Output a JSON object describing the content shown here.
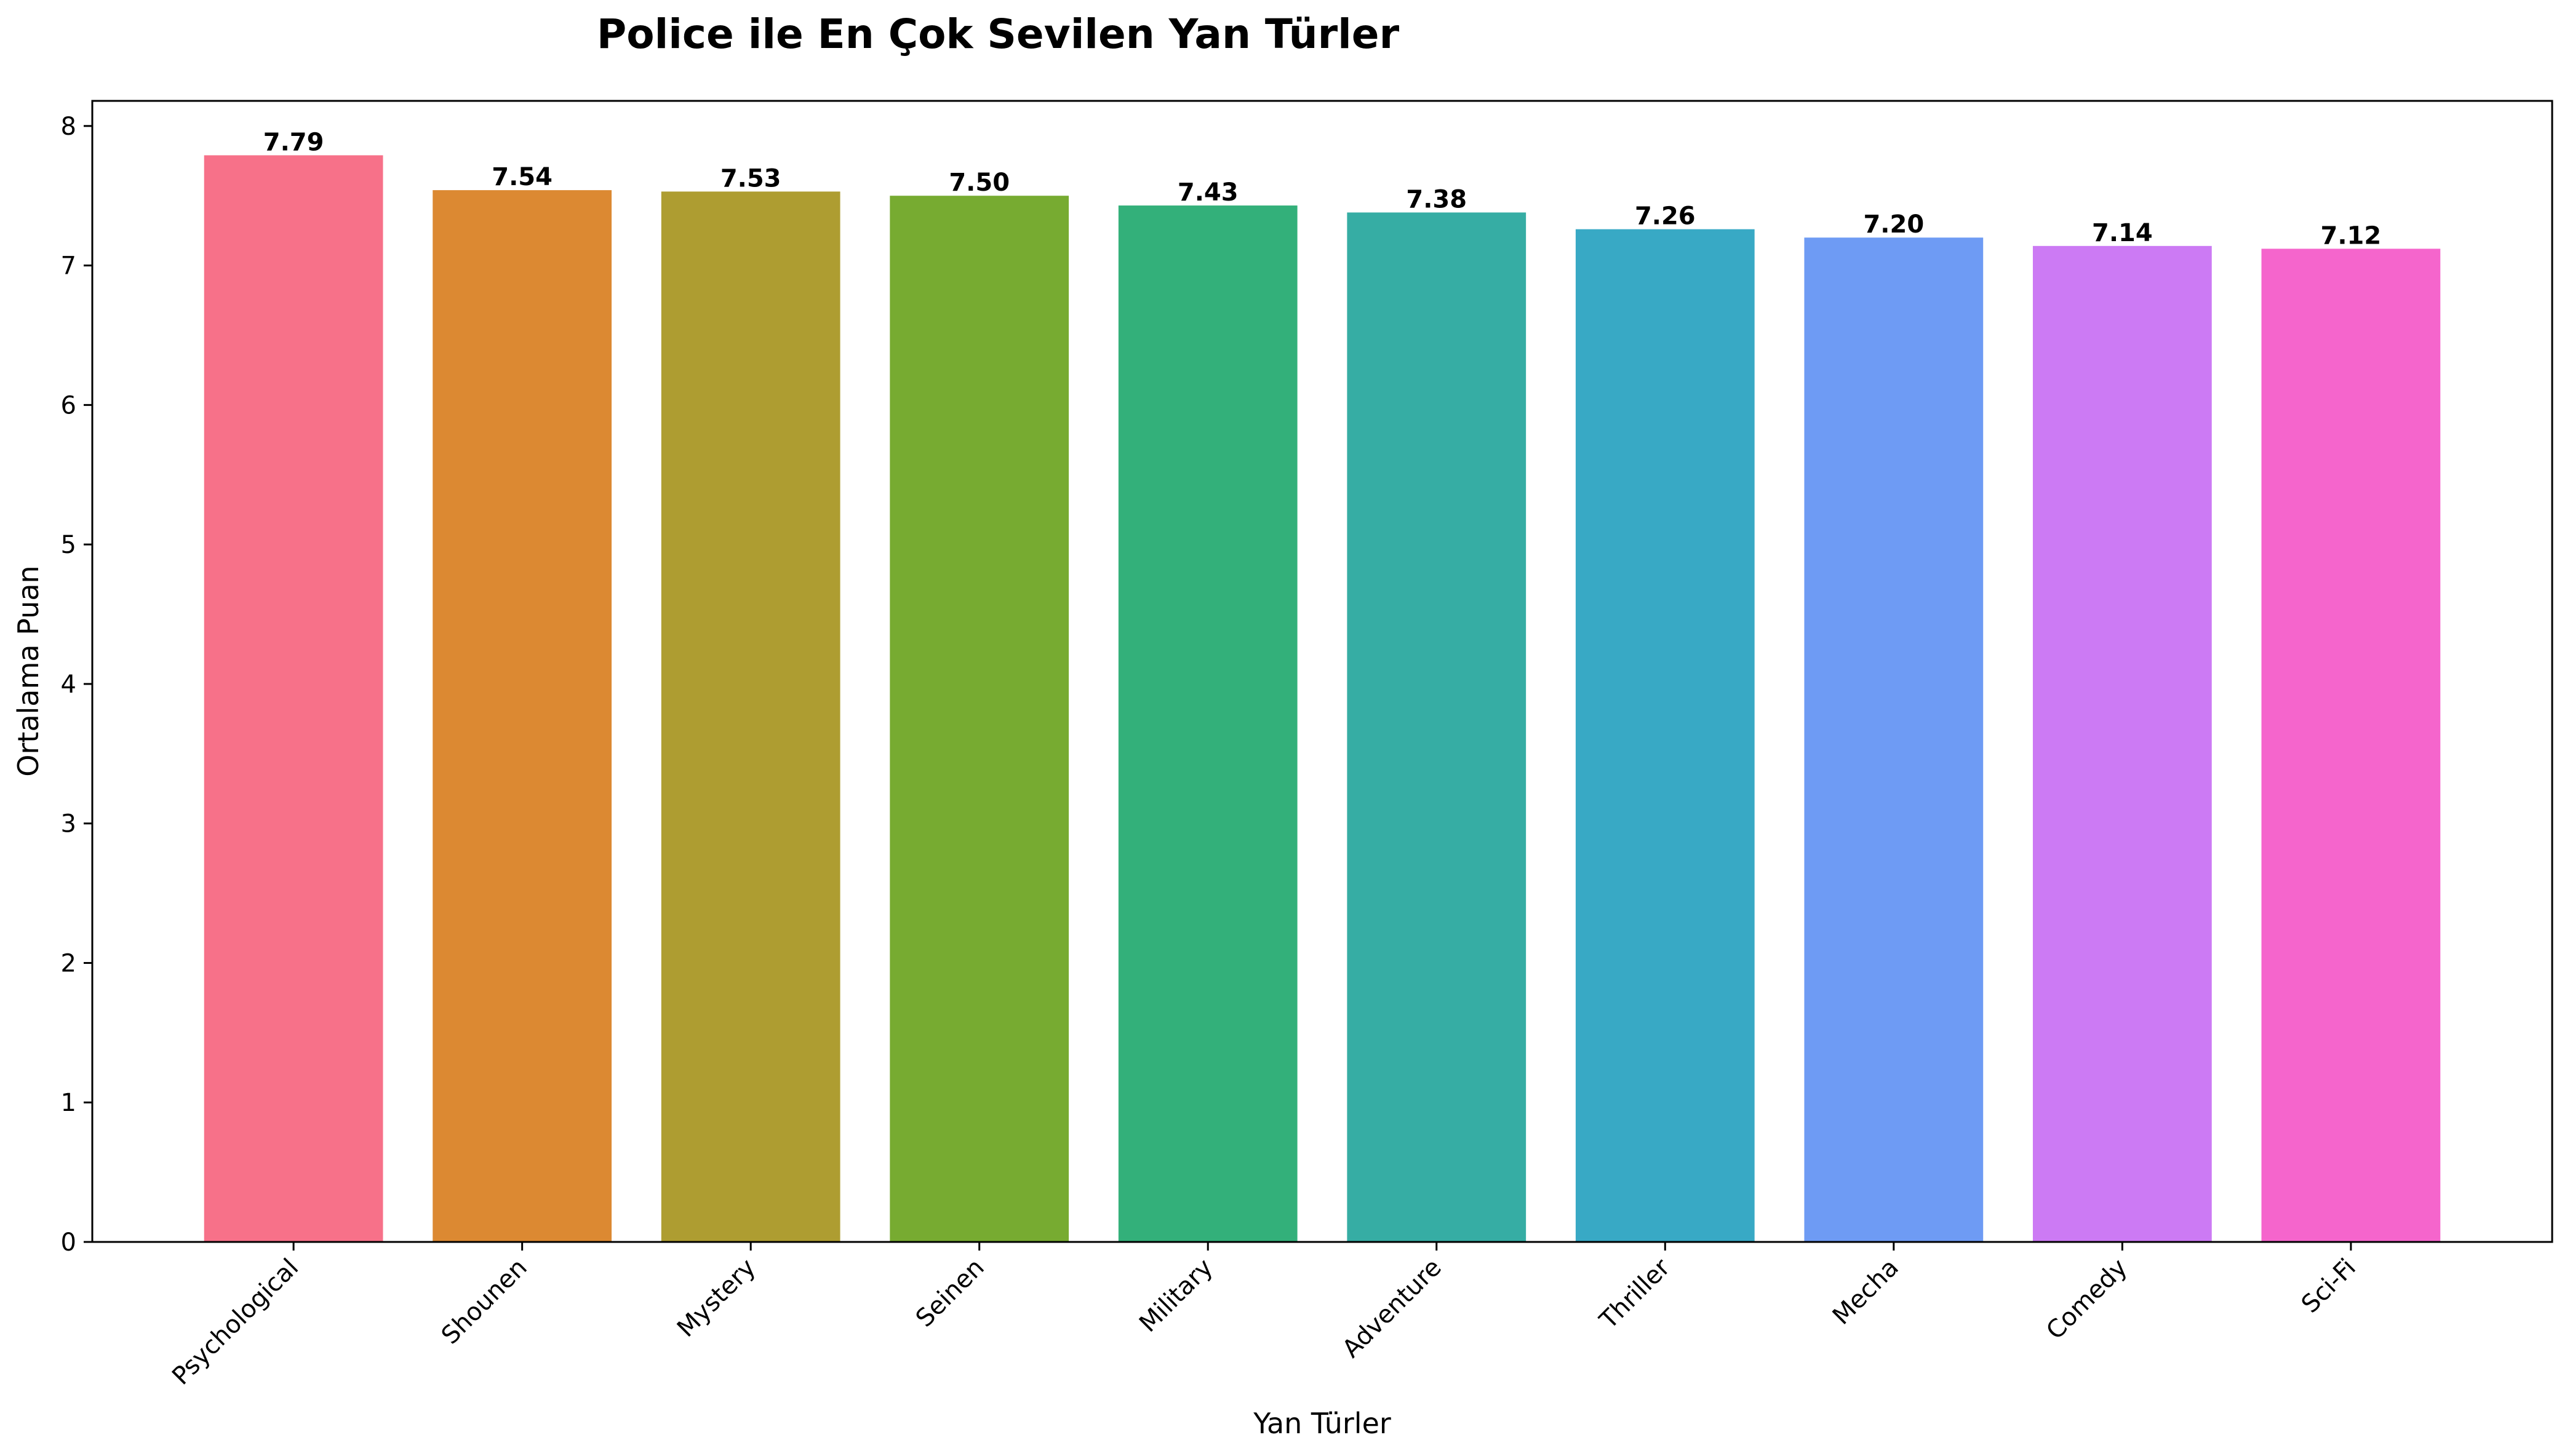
{
  "chart_data": {
    "type": "bar",
    "title": "Police ile En Çok Sevilen Yan Türler",
    "xlabel": "Yan Türler",
    "ylabel": "Ortalama Puan",
    "ylim": [
      0,
      8.18
    ],
    "yticks": [
      "0",
      "1",
      "2",
      "3",
      "4",
      "5",
      "6",
      "7",
      "8"
    ],
    "grid": false,
    "categories": [
      "Psychological",
      "Shounen",
      "Mystery",
      "Seinen",
      "Military",
      "Adventure",
      "Thriller",
      "Mecha",
      "Comedy",
      "Sci-Fi"
    ],
    "values": [
      7.79,
      7.54,
      7.53,
      7.5,
      7.43,
      7.38,
      7.26,
      7.2,
      7.14,
      7.12
    ],
    "value_labels": [
      "7.79",
      "7.54",
      "7.53",
      "7.50",
      "7.43",
      "7.38",
      "7.26",
      "7.20",
      "7.14",
      "7.12"
    ],
    "colors": [
      "#f77189",
      "#dc8932",
      "#ae9d31",
      "#77ab31",
      "#33b07a",
      "#36ada4",
      "#38a9c5",
      "#6e9bf4",
      "#cc7af4",
      "#f565cc"
    ]
  }
}
